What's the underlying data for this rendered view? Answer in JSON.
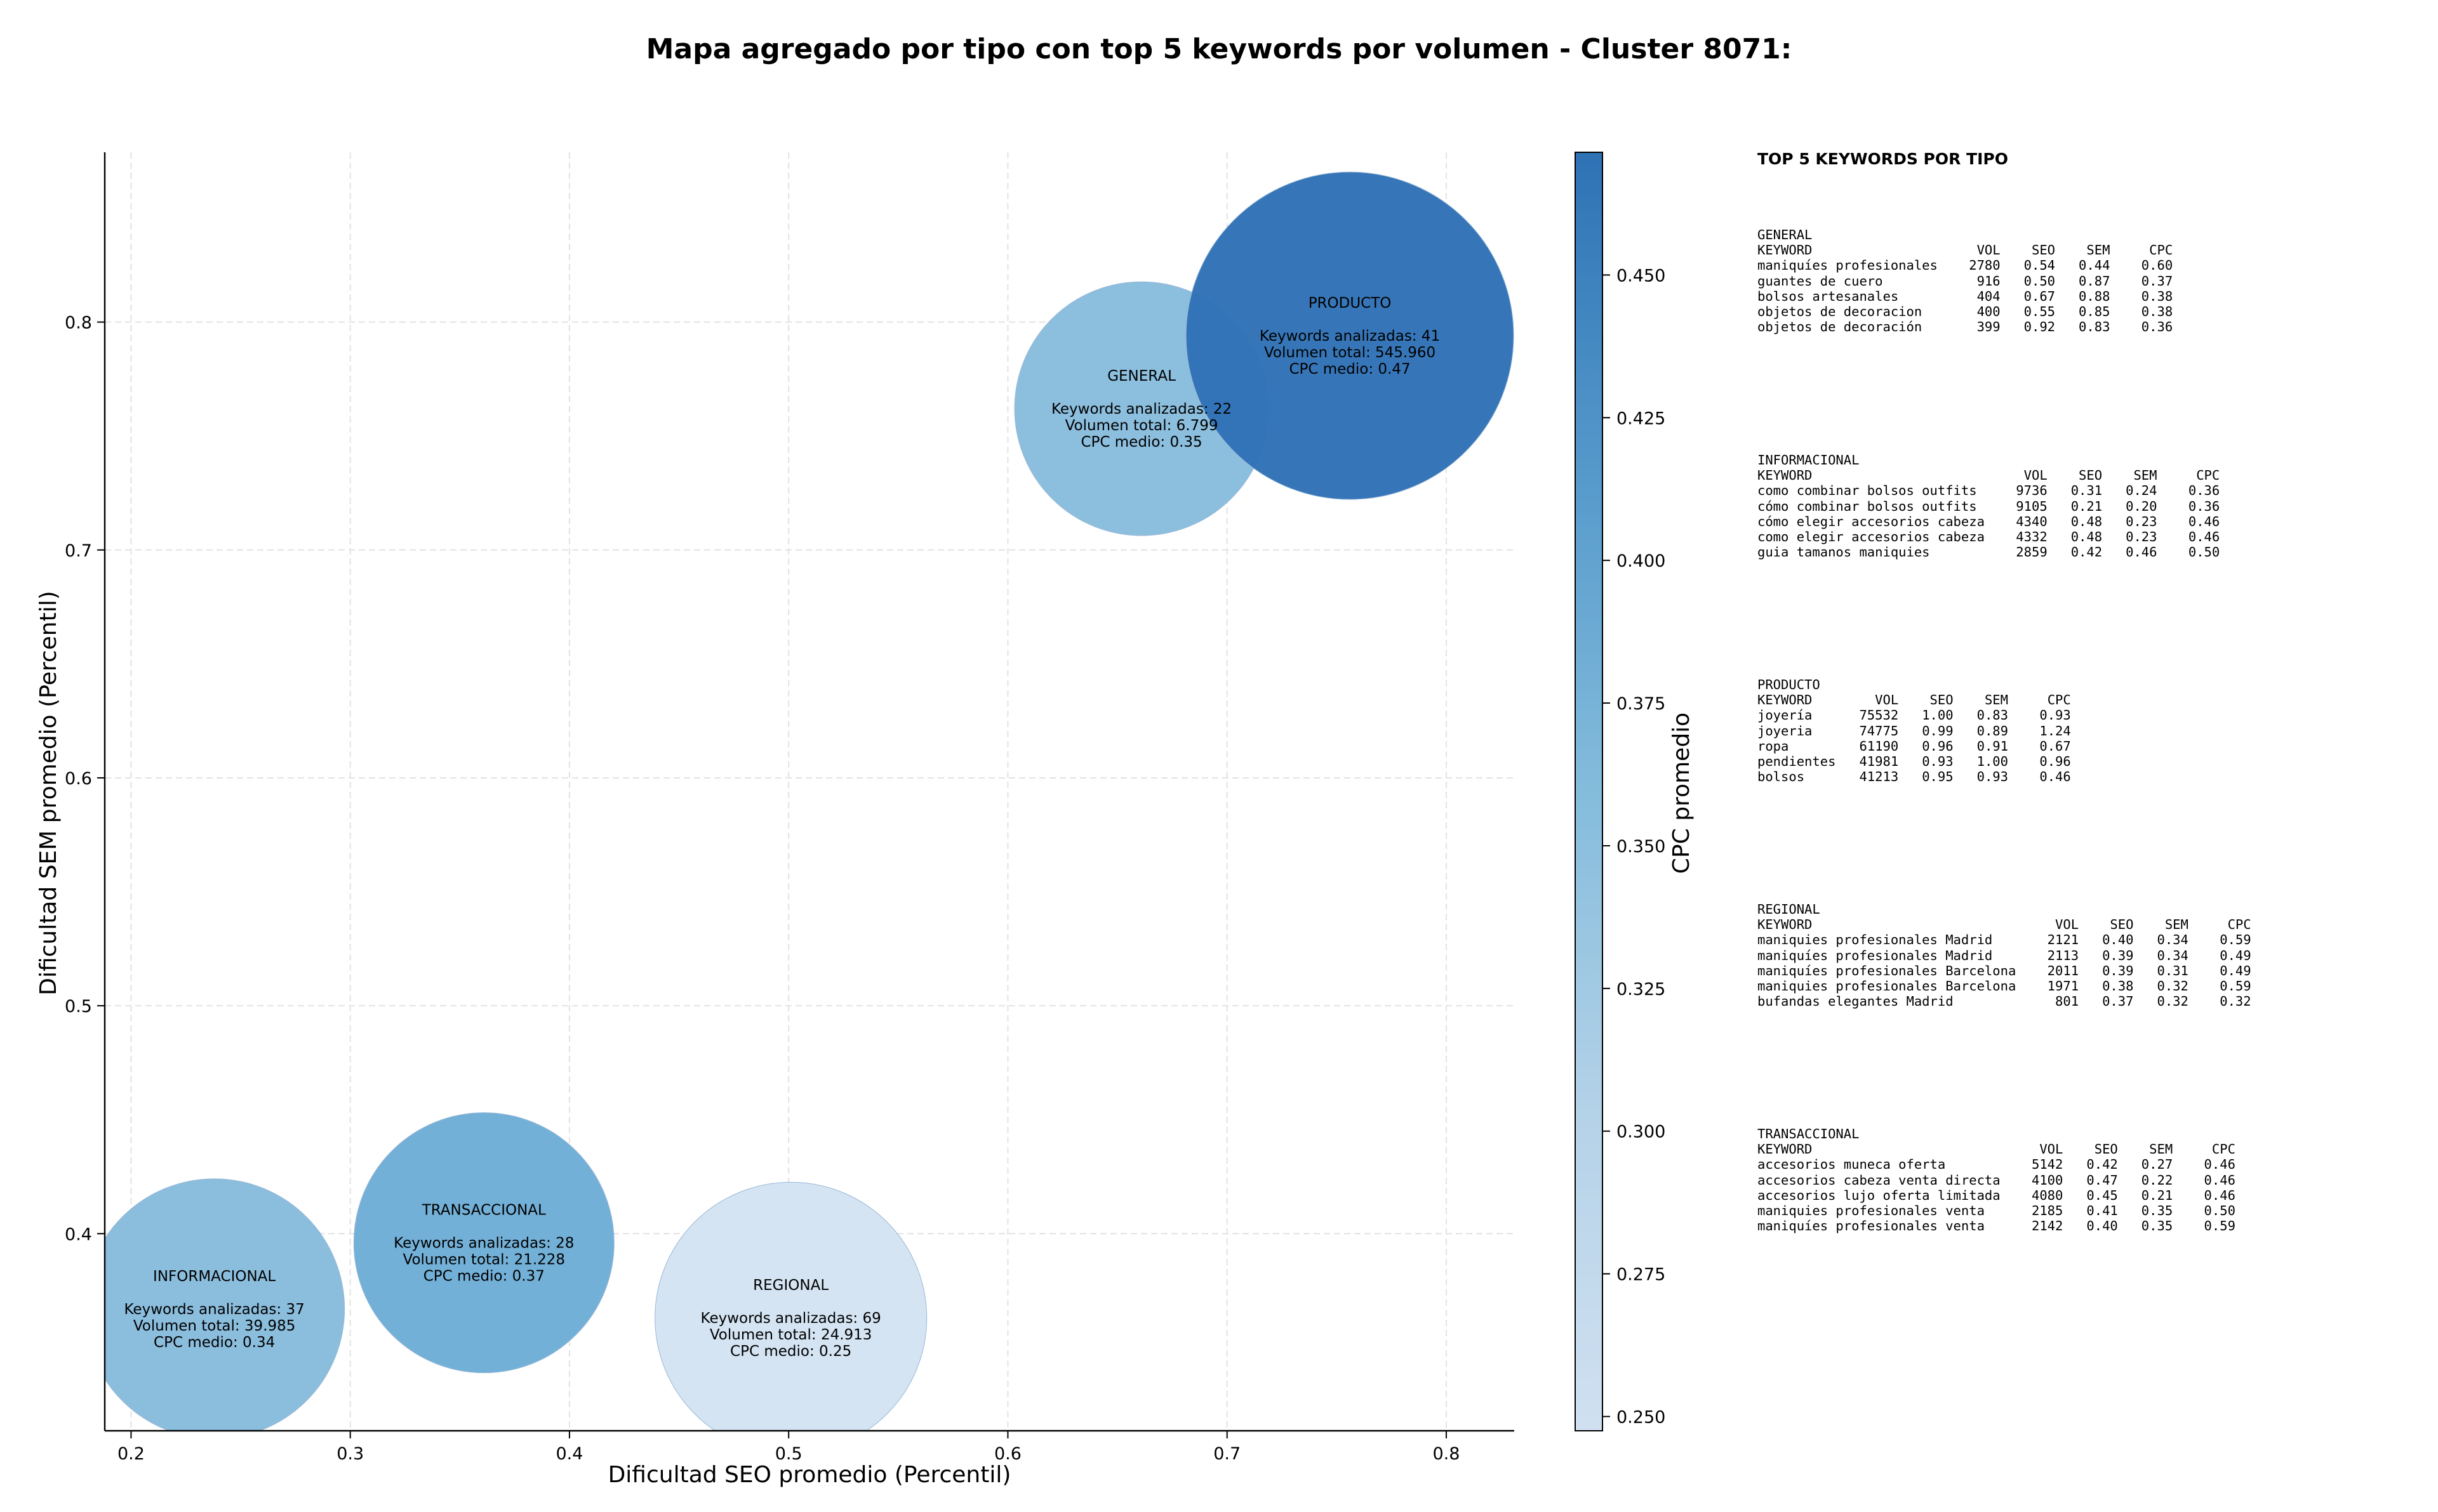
{
  "title": "Mapa agregado por tipo con top 5 keywords por volumen - Cluster 8071:",
  "chart_data": {
    "type": "bubble",
    "xlabel": "Dificultad SEO promedio (Percentil)",
    "ylabel": "Dificultad SEM promedio (Percentil)",
    "xlim": [
      0.188,
      0.831
    ],
    "ylim": [
      0.3135,
      0.8745
    ],
    "xticks": [
      "0.2",
      "0.3",
      "0.4",
      "0.5",
      "0.6",
      "0.7",
      "0.8"
    ],
    "yticks": [
      "0.4",
      "0.5",
      "0.6",
      "0.7",
      "0.8"
    ],
    "grid": true,
    "colorbar": {
      "label": "CPC promedio",
      "min": 0.2475,
      "max": 0.4715,
      "ticks": [
        "0.250",
        "0.275",
        "0.300",
        "0.325",
        "0.350",
        "0.375",
        "0.400",
        "0.425",
        "0.450"
      ],
      "color_low": "#d0e0f1",
      "color_high": "#2e72b5"
    },
    "bubbles": [
      {
        "name": "INFORMACIONAL",
        "x": 0.238,
        "y": 0.367,
        "keywords_line": "Keywords analizadas: 37",
        "volume_line": "Volumen total: 39.985",
        "cpc_line": "CPC medio: 0.34",
        "cpc": 0.34,
        "color": "#87bbdc"
      },
      {
        "name": "TRANSACCIONAL",
        "x": 0.361,
        "y": 0.396,
        "keywords_line": "Keywords analizadas: 28",
        "volume_line": "Volumen total: 21.228",
        "cpc_line": "CPC medio: 0.37",
        "cpc": 0.37,
        "color": "#6eadd6"
      },
      {
        "name": "REGIONAL",
        "x": 0.501,
        "y": 0.363,
        "keywords_line": "Keywords analizadas: 69",
        "volume_line": "Volumen total: 24.913",
        "cpc_line": "CPC medio: 0.25",
        "cpc": 0.25,
        "color": "#d3e3f3"
      },
      {
        "name": "GENERAL",
        "x": 0.661,
        "y": 0.762,
        "keywords_line": "Keywords analizadas: 22",
        "volume_line": "Volumen total: 6.799",
        "cpc_line": "CPC medio: 0.35",
        "cpc": 0.35,
        "color": "#88bcdd"
      },
      {
        "name": "PRODUCTO",
        "x": 0.756,
        "y": 0.794,
        "keywords_line": "Keywords analizadas: 41",
        "volume_line": "Volumen total: 545.960",
        "cpc_line": "CPC medio: 0.47",
        "cpc": 0.47,
        "color": "#2f72b6"
      }
    ]
  },
  "side_panel": {
    "heading": "TOP 5 KEYWORDS POR TIPO",
    "column_labels": [
      "KEYWORD",
      "VOL",
      "SEO",
      "SEM",
      "CPC"
    ],
    "tables": [
      {
        "type": "GENERAL",
        "rows": [
          [
            "maniquíes profesionales",
            "2780",
            "0.54",
            "0.44",
            "0.60"
          ],
          [
            "guantes de cuero",
            "916",
            "0.50",
            "0.87",
            "0.37"
          ],
          [
            "bolsos artesanales",
            "404",
            "0.67",
            "0.88",
            "0.38"
          ],
          [
            "objetos de decoracion",
            "400",
            "0.55",
            "0.85",
            "0.38"
          ],
          [
            "objetos de decoración",
            "399",
            "0.92",
            "0.83",
            "0.36"
          ]
        ]
      },
      {
        "type": "INFORMACIONAL",
        "rows": [
          [
            "como combinar bolsos outfits",
            "9736",
            "0.31",
            "0.24",
            "0.36"
          ],
          [
            "cómo combinar bolsos outfits",
            "9105",
            "0.21",
            "0.20",
            "0.36"
          ],
          [
            "cómo elegir accesorios cabeza",
            "4340",
            "0.48",
            "0.23",
            "0.46"
          ],
          [
            "como elegir accesorios cabeza",
            "4332",
            "0.48",
            "0.23",
            "0.46"
          ],
          [
            "guia tamanos maniquies",
            "2859",
            "0.42",
            "0.46",
            "0.50"
          ]
        ]
      },
      {
        "type": "PRODUCTO",
        "rows": [
          [
            "joyería",
            "75532",
            "1.00",
            "0.83",
            "0.93"
          ],
          [
            "joyeria",
            "74775",
            "0.99",
            "0.89",
            "1.24"
          ],
          [
            "ropa",
            "61190",
            "0.96",
            "0.91",
            "0.67"
          ],
          [
            "pendientes",
            "41981",
            "0.93",
            "1.00",
            "0.96"
          ],
          [
            "bolsos",
            "41213",
            "0.95",
            "0.93",
            "0.46"
          ]
        ]
      },
      {
        "type": "REGIONAL",
        "rows": [
          [
            "maniquies profesionales Madrid",
            "2121",
            "0.40",
            "0.34",
            "0.59"
          ],
          [
            "maniquíes profesionales Madrid",
            "2113",
            "0.39",
            "0.34",
            "0.49"
          ],
          [
            "maniquíes profesionales Barcelona",
            "2011",
            "0.39",
            "0.31",
            "0.49"
          ],
          [
            "maniquies profesionales Barcelona",
            "1971",
            "0.38",
            "0.32",
            "0.59"
          ],
          [
            "bufandas elegantes Madrid",
            "801",
            "0.37",
            "0.32",
            "0.32"
          ]
        ]
      },
      {
        "type": "TRANSACCIONAL",
        "rows": [
          [
            "accesorios muneca oferta",
            "5142",
            "0.42",
            "0.27",
            "0.46"
          ],
          [
            "accesorios cabeza venta directa",
            "4100",
            "0.47",
            "0.22",
            "0.46"
          ],
          [
            "accesorios lujo oferta limitada",
            "4080",
            "0.45",
            "0.21",
            "0.46"
          ],
          [
            "maniquies profesionales venta",
            "2185",
            "0.41",
            "0.35",
            "0.50"
          ],
          [
            "maniquíes profesionales venta",
            "2142",
            "0.40",
            "0.35",
            "0.59"
          ]
        ]
      }
    ]
  }
}
